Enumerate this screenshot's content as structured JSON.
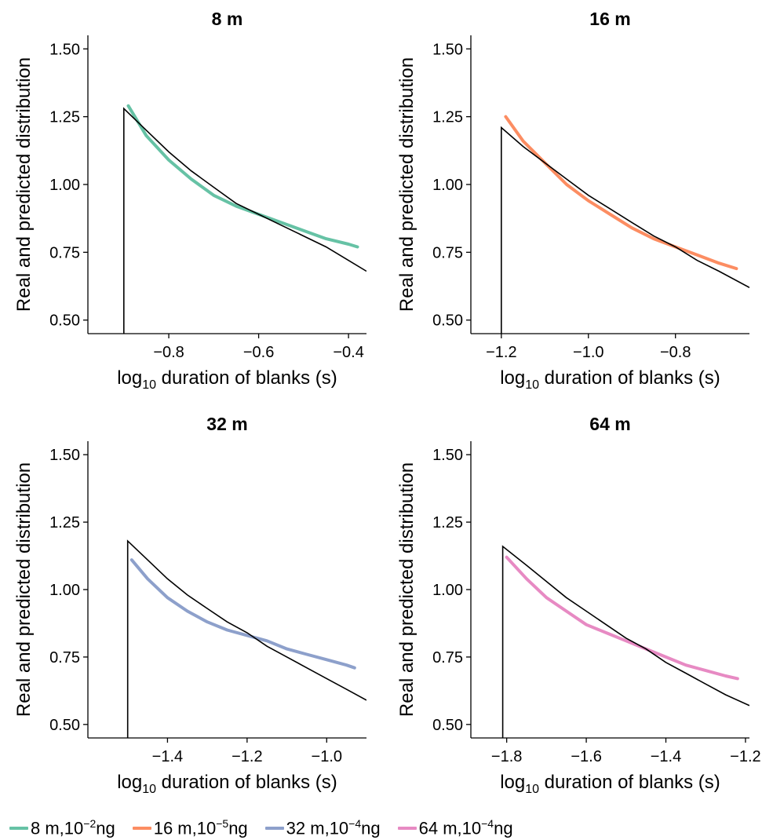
{
  "chart_data": [
    {
      "type": "line",
      "title": "8 m",
      "xlabel": "log10 duration of blanks (s)",
      "ylabel": "Real and predicted distribution",
      "xlim": [
        -0.98,
        -0.36
      ],
      "ylim": [
        0.45,
        1.55
      ],
      "xticks": [
        -0.8,
        -0.6,
        -0.4
      ],
      "xtick_labels": [
        "−0.8",
        "−0.6",
        "−0.4"
      ],
      "yticks": [
        0.5,
        0.75,
        1.0,
        1.25,
        1.5
      ],
      "ytick_labels": [
        "0.50",
        "0.75",
        "1.00",
        "1.25",
        "1.50"
      ],
      "real": {
        "x": [
          -0.9,
          -0.9,
          -0.85,
          -0.8,
          -0.75,
          -0.7,
          -0.65,
          -0.6,
          -0.55,
          -0.5,
          -0.45,
          -0.4,
          -0.36
        ],
        "y": [
          0.45,
          1.28,
          1.2,
          1.12,
          1.05,
          0.99,
          0.93,
          0.89,
          0.85,
          0.81,
          0.77,
          0.72,
          0.68
        ]
      },
      "predicted": {
        "color": "#66c2a5",
        "x": [
          -0.89,
          -0.85,
          -0.8,
          -0.75,
          -0.7,
          -0.65,
          -0.6,
          -0.55,
          -0.5,
          -0.45,
          -0.4,
          -0.38
        ],
        "y": [
          1.29,
          1.18,
          1.09,
          1.02,
          0.96,
          0.92,
          0.89,
          0.86,
          0.83,
          0.8,
          0.78,
          0.77
        ]
      }
    },
    {
      "type": "line",
      "title": "16 m",
      "xlabel": "log10 duration of blanks (s)",
      "ylabel": "Real and predicted distribution",
      "xlim": [
        -1.27,
        -0.63
      ],
      "ylim": [
        0.45,
        1.55
      ],
      "xticks": [
        -1.2,
        -1.0,
        -0.8
      ],
      "xtick_labels": [
        "−1.2",
        "−1.0",
        "−0.8"
      ],
      "yticks": [
        0.5,
        0.75,
        1.0,
        1.25,
        1.5
      ],
      "ytick_labels": [
        "0.50",
        "0.75",
        "1.00",
        "1.25",
        "1.50"
      ],
      "real": {
        "x": [
          -1.2,
          -1.2,
          -1.15,
          -1.1,
          -1.05,
          -1.0,
          -0.95,
          -0.9,
          -0.85,
          -0.8,
          -0.75,
          -0.7,
          -0.63
        ],
        "y": [
          0.45,
          1.21,
          1.14,
          1.08,
          1.02,
          0.96,
          0.91,
          0.86,
          0.81,
          0.77,
          0.72,
          0.68,
          0.62
        ]
      },
      "predicted": {
        "color": "#fc8d62",
        "x": [
          -1.19,
          -1.15,
          -1.1,
          -1.05,
          -1.0,
          -0.95,
          -0.9,
          -0.85,
          -0.8,
          -0.75,
          -0.7,
          -0.66
        ],
        "y": [
          1.25,
          1.16,
          1.08,
          1.0,
          0.94,
          0.89,
          0.84,
          0.8,
          0.77,
          0.74,
          0.71,
          0.69
        ]
      }
    },
    {
      "type": "line",
      "title": "32 m",
      "xlabel": "log10 duration of blanks (s)",
      "ylabel": "Real and predicted distribution",
      "xlim": [
        -1.6,
        -0.9
      ],
      "ylim": [
        0.45,
        1.55
      ],
      "xticks": [
        -1.4,
        -1.2,
        -1.0
      ],
      "xtick_labels": [
        "−1.4",
        "−1.2",
        "−1.0"
      ],
      "yticks": [
        0.5,
        0.75,
        1.0,
        1.25,
        1.5
      ],
      "ytick_labels": [
        "0.50",
        "0.75",
        "1.00",
        "1.25",
        "1.50"
      ],
      "real": {
        "x": [
          -1.5,
          -1.5,
          -1.45,
          -1.4,
          -1.35,
          -1.3,
          -1.25,
          -1.2,
          -1.15,
          -1.1,
          -1.05,
          -1.0,
          -0.95,
          -0.9
        ],
        "y": [
          0.45,
          1.18,
          1.11,
          1.04,
          0.98,
          0.93,
          0.88,
          0.84,
          0.79,
          0.75,
          0.71,
          0.67,
          0.63,
          0.59
        ]
      },
      "predicted": {
        "color": "#8da0cb",
        "x": [
          -1.49,
          -1.45,
          -1.4,
          -1.35,
          -1.3,
          -1.25,
          -1.2,
          -1.15,
          -1.1,
          -1.05,
          -1.0,
          -0.95,
          -0.93
        ],
        "y": [
          1.11,
          1.04,
          0.97,
          0.92,
          0.88,
          0.85,
          0.83,
          0.81,
          0.78,
          0.76,
          0.74,
          0.72,
          0.71
        ]
      }
    },
    {
      "type": "line",
      "title": "64 m",
      "xlabel": "log10 duration of blanks (s)",
      "ylabel": "Real and predicted distribution",
      "xlim": [
        -1.89,
        -1.19
      ],
      "ylim": [
        0.45,
        1.55
      ],
      "xticks": [
        -1.8,
        -1.6,
        -1.4,
        -1.2
      ],
      "xtick_labels": [
        "−1.8",
        "−1.6",
        "−1.4",
        "−1.2"
      ],
      "yticks": [
        0.5,
        0.75,
        1.0,
        1.25,
        1.5
      ],
      "ytick_labels": [
        "0.50",
        "0.75",
        "1.00",
        "1.25",
        "1.50"
      ],
      "real": {
        "x": [
          -1.81,
          -1.81,
          -1.75,
          -1.7,
          -1.65,
          -1.6,
          -1.55,
          -1.5,
          -1.45,
          -1.4,
          -1.35,
          -1.3,
          -1.25,
          -1.19
        ],
        "y": [
          0.45,
          1.16,
          1.09,
          1.03,
          0.97,
          0.92,
          0.87,
          0.82,
          0.78,
          0.73,
          0.69,
          0.65,
          0.61,
          0.57
        ]
      },
      "predicted": {
        "color": "#e78ac3",
        "x": [
          -1.8,
          -1.75,
          -1.7,
          -1.65,
          -1.6,
          -1.55,
          -1.5,
          -1.45,
          -1.4,
          -1.35,
          -1.3,
          -1.25,
          -1.22
        ],
        "y": [
          1.12,
          1.04,
          0.97,
          0.92,
          0.87,
          0.84,
          0.81,
          0.78,
          0.75,
          0.72,
          0.7,
          0.68,
          0.67
        ]
      }
    }
  ],
  "legend": [
    {
      "text": "8 m,10",
      "sup": "−2",
      "after": "ng",
      "color": "#66c2a5"
    },
    {
      "text": "16 m,10",
      "sup": "−5",
      "after": "ng",
      "color": "#fc8d62"
    },
    {
      "text": "32 m,10",
      "sup": "−4",
      "after": "ng",
      "color": "#8da0cb"
    },
    {
      "text": "64 m,10",
      "sup": "−4",
      "after": "ng",
      "color": "#e78ac3"
    }
  ]
}
